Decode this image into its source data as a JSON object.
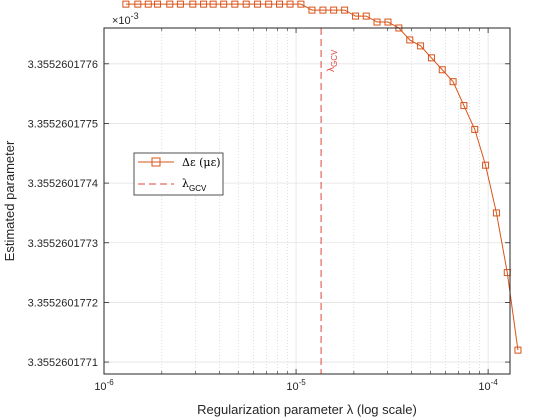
{
  "chart_data": {
    "type": "line",
    "xscale": "log",
    "xlabel": "Regularization parameter λ (log scale)",
    "ylabel": "Estimated parameter",
    "xlim": [
      1e-06,
      0.00013
    ],
    "ylim": [
      3.35526017708,
      3.35526017766
    ],
    "y_multiplier": {
      "base": "×10",
      "exponent": "-3"
    },
    "xticks": [
      {
        "value": 1e-06,
        "base": "10",
        "exponent": "-6"
      },
      {
        "value": 1e-05,
        "base": "10",
        "exponent": "-5"
      },
      {
        "value": 0.0001,
        "base": "10",
        "exponent": "-4"
      }
    ],
    "yticks": [
      {
        "value": 3.3552601771,
        "label": "3.3552601771"
      },
      {
        "value": 3.3552601772,
        "label": "3.3552601772"
      },
      {
        "value": 3.3552601773,
        "label": "3.3552601773"
      },
      {
        "value": 3.3552601774,
        "label": "3.3552601774"
      },
      {
        "value": 3.3552601775,
        "label": "3.3552601775"
      },
      {
        "value": 3.3552601776,
        "label": "3.3552601776"
      }
    ],
    "grid": true,
    "legend_position": "middle-left",
    "series": [
      {
        "name": "Δε (με)",
        "color": "#d95319",
        "marker": "square",
        "x": [
          1.3e-06,
          1.5e-06,
          1.7e-06,
          1.9e-06,
          2.2e-06,
          2.5e-06,
          2.9e-06,
          3.3e-06,
          3.7e-06,
          4.2e-06,
          4.8e-06,
          5.5e-06,
          6.3e-06,
          7.2e-06,
          8.2e-06,
          9.3e-06,
          1.06e-05,
          1.21e-05,
          1.38e-05,
          1.57e-05,
          1.79e-05,
          2.04e-05,
          2.32e-05,
          2.64e-05,
          3.01e-05,
          3.43e-05,
          3.91e-05,
          4.45e-05,
          5.07e-05,
          5.77e-05,
          6.57e-05,
          7.48e-05,
          8.52e-05,
          9.7e-05,
          0.0001105,
          0.0001258,
          0.000143
        ],
        "y": [
          3.3552601777,
          3.3552601777,
          3.3552601777,
          3.3552601777,
          3.3552601777,
          3.3552601777,
          3.3552601777,
          3.3552601777,
          3.3552601777,
          3.3552601777,
          3.3552601777,
          3.3552601777,
          3.3552601777,
          3.3552601777,
          3.3552601777,
          3.3552601777,
          3.3552601777,
          3.35526017769,
          3.35526017769,
          3.35526017769,
          3.35526017769,
          3.35526017768,
          3.35526017768,
          3.35526017767,
          3.35526017767,
          3.35526017766,
          3.35526017764,
          3.35526017763,
          3.35526017761,
          3.35526017759,
          3.35526017757,
          3.35526017753,
          3.35526017749,
          3.35526017743,
          3.35526017735,
          3.35526017725,
          3.35526017712
        ]
      }
    ],
    "reference_lines": [
      {
        "name": "λGCV",
        "legend_base": "λ",
        "legend_sub": "GCV",
        "annotation_base": "λ",
        "annotation_sub": "GCV",
        "orientation": "vertical",
        "x": 1.35e-05,
        "color": "#e0443c",
        "style": "dashed"
      }
    ]
  }
}
